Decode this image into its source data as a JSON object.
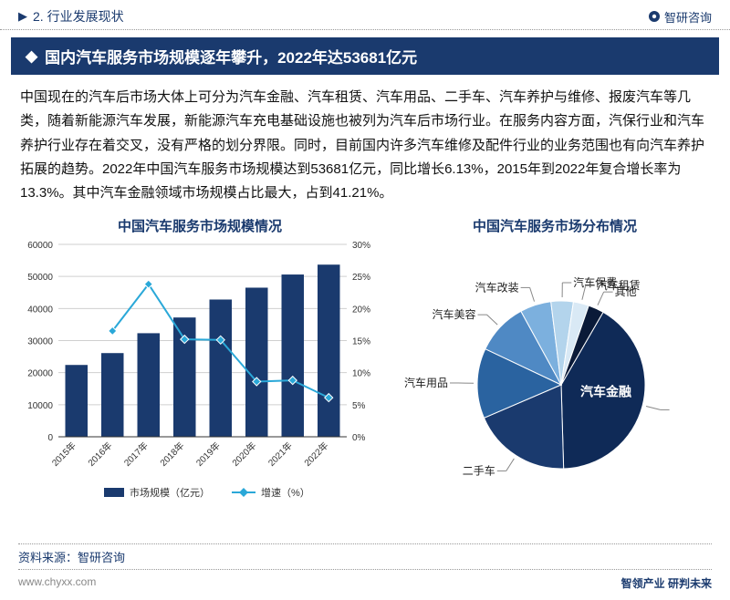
{
  "header": {
    "section_label": "2. 行业发展现状",
    "brand": "智研咨询"
  },
  "title": "国内汽车服务市场规模逐年攀升，2022年达53681亿元",
  "paragraph": "中国现在的汽车后市场大体上可分为汽车金融、汽车租赁、汽车用品、二手车、汽车养护与维修、报废汽车等几类，随着新能源汽车发展，新能源汽车充电基础设施也被列为汽车后市场行业。在服务内容方面，汽保行业和汽车养护行业存在着交叉，没有严格的划分界限。同时，目前国内许多汽车维修及配件行业的业务范围也有向汽车养护拓展的趋势。2022年中国汽车服务市场规模达到53681亿元，同比增长6.13%，2015年到2022年复合增长率为13.3%。其中汽车金融领域市场规模占比最大，占到41.21%。",
  "bar_line_chart": {
    "title": "中国汽车服务市场规模情况",
    "type": "bar+line",
    "categories": [
      "2015年",
      "2016年",
      "2017年",
      "2018年",
      "2019年",
      "2020年",
      "2021年",
      "2022年"
    ],
    "bar_values": [
      22400,
      26100,
      32300,
      37200,
      42800,
      46500,
      50600,
      53681
    ],
    "line_values_pct": [
      null,
      16.5,
      23.8,
      15.2,
      15.1,
      8.6,
      8.8,
      6.1
    ],
    "bar_color": "#1a3a6e",
    "line_color": "#2aa8d8",
    "marker_shape": "diamond",
    "y_left": {
      "min": 0,
      "max": 60000,
      "step": 10000
    },
    "y_right_pct": {
      "min": 0,
      "max": 30,
      "step": 5
    },
    "legend": {
      "bar": "市场规模（亿元）",
      "line": "增速（%）"
    },
    "grid_color": "#cfcfcf",
    "x_label_rotate_deg": -45,
    "axis_font_size": 10,
    "legend_font_size": 11
  },
  "pie_chart": {
    "title": "中国汽车服务市场分布情况",
    "type": "pie",
    "slices": [
      {
        "label": "汽车金融",
        "value": 41.21,
        "color": "#0f2a57"
      },
      {
        "label": "二手车",
        "value": 19.0,
        "color": "#1a3a6e"
      },
      {
        "label": "汽车用品",
        "value": 13.5,
        "color": "#2a63a0"
      },
      {
        "label": "汽车美容",
        "value": 10.0,
        "color": "#4f89c4"
      },
      {
        "label": "汽车改装",
        "value": 6.0,
        "color": "#7cb0de"
      },
      {
        "label": "汽车保费",
        "value": 4.3,
        "color": "#b3d4ec"
      },
      {
        "label": "汽车租赁",
        "value": 3.0,
        "color": "#d9e9f5"
      },
      {
        "label": "其他",
        "value": 3.0,
        "color": "#0a1a38"
      }
    ],
    "start_angle_deg": -60,
    "label_font_size": 12,
    "label_color": "#222"
  },
  "footer": {
    "source": "资料来源：智研咨询",
    "url": "www.chyxx.com",
    "tagline": "智领产业  研判未来"
  }
}
